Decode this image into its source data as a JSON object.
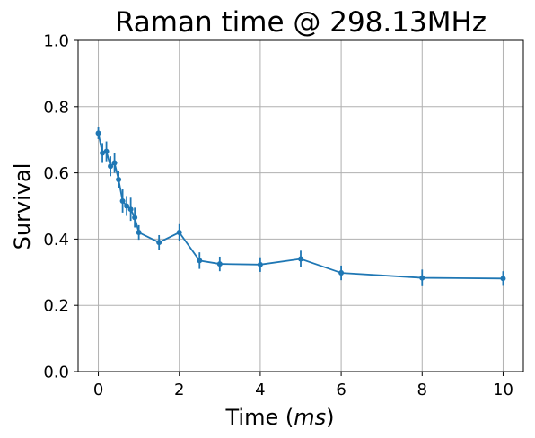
{
  "chart_data": {
    "type": "line",
    "title": "Raman time @ 298.13MHz",
    "xlabel_prefix": "Time (",
    "xlabel_unit": "ms",
    "xlabel_suffix": ")",
    "ylabel": "Survival",
    "xlim": [
      -0.5,
      10.5
    ],
    "ylim": [
      0.0,
      1.0
    ],
    "xticks": [
      0,
      2,
      4,
      6,
      8,
      10
    ],
    "xtick_labels": [
      "0",
      "2",
      "4",
      "6",
      "8",
      "10"
    ],
    "yticks": [
      0.0,
      0.2,
      0.4,
      0.6,
      0.8,
      1.0
    ],
    "ytick_labels": [
      "0.0",
      "0.2",
      "0.4",
      "0.6",
      "0.8",
      "1.0"
    ],
    "grid": true,
    "series": [
      {
        "color": "#1f77b4",
        "x": [
          0,
          0.1,
          0.2,
          0.3,
          0.4,
          0.5,
          0.6,
          0.7,
          0.8,
          0.9,
          1.0,
          1.5,
          2.0,
          2.5,
          3.0,
          4.0,
          5.0,
          6.0,
          8.0,
          10.0
        ],
        "y": [
          0.72,
          0.66,
          0.665,
          0.62,
          0.63,
          0.58,
          0.515,
          0.5,
          0.49,
          0.465,
          0.42,
          0.39,
          0.42,
          0.335,
          0.325,
          0.323,
          0.34,
          0.298,
          0.283,
          0.281
        ],
        "yerr": [
          0.018,
          0.03,
          0.03,
          0.03,
          0.03,
          0.025,
          0.035,
          0.03,
          0.035,
          0.03,
          0.022,
          0.022,
          0.025,
          0.025,
          0.022,
          0.022,
          0.025,
          0.022,
          0.025,
          0.022
        ]
      }
    ]
  }
}
